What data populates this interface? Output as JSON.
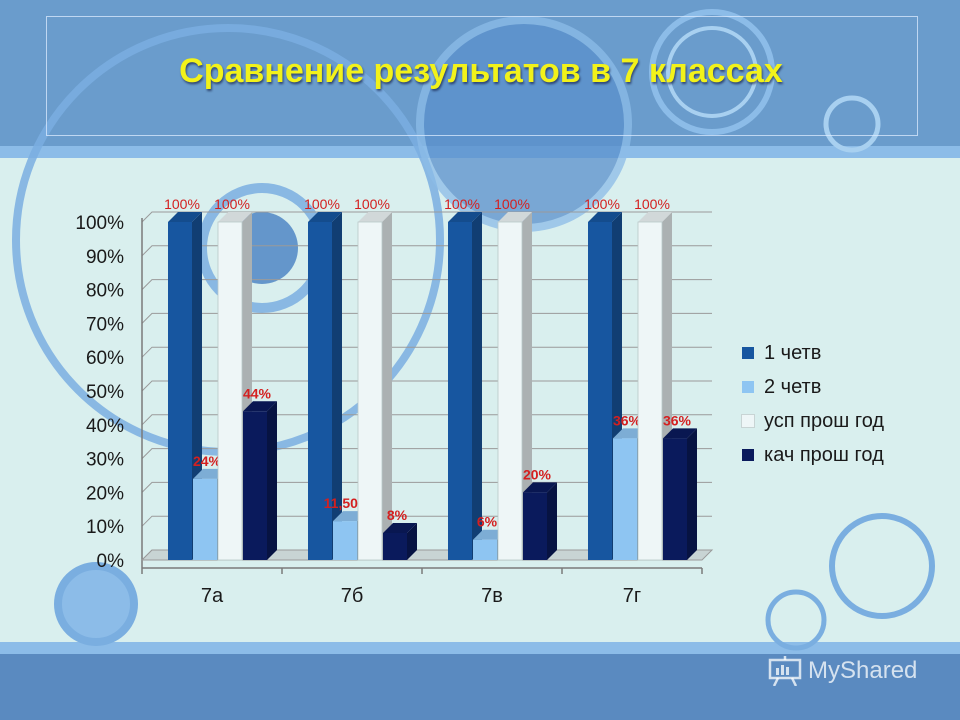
{
  "slide": {
    "title": "Сравнение результатов в 7 классах",
    "watermark": "MyShared",
    "colors": {
      "background": "#5f8fbf",
      "band": "#6b9fd4",
      "panel": "#d9efee",
      "title": "#f2f21a",
      "label": "#d42020"
    }
  },
  "chart_data": {
    "type": "bar",
    "title": "",
    "xlabel": "",
    "ylabel": "",
    "ylim": [
      0,
      100
    ],
    "y_ticks": [
      "0%",
      "10%",
      "20%",
      "30%",
      "40%",
      "50%",
      "60%",
      "70%",
      "80%",
      "90%",
      "100%"
    ],
    "categories": [
      "7а",
      "7б",
      "7в",
      "7г"
    ],
    "legend_position": "right",
    "grid": true,
    "series": [
      {
        "name": "1 четв",
        "color": "#1756a0",
        "values": [
          100,
          100,
          100,
          100
        ],
        "labels": [
          "100%",
          "100%",
          "100%",
          "100%"
        ]
      },
      {
        "name": "2 четв",
        "color": "#8ec5f2",
        "values": [
          24,
          11.5,
          6,
          36
        ],
        "labels": [
          "24%",
          "11,50%",
          "6%",
          "36%"
        ]
      },
      {
        "name": "усп прош год",
        "color": "#eef6f7",
        "values": [
          100,
          100,
          100,
          100
        ],
        "labels": [
          "100%",
          "100%",
          "100%",
          "100%"
        ]
      },
      {
        "name": "кач прош год",
        "color": "#0a1a5c",
        "values": [
          44,
          8,
          20,
          36
        ],
        "labels": [
          "44%",
          "8%",
          "20%",
          "36%"
        ]
      }
    ]
  }
}
